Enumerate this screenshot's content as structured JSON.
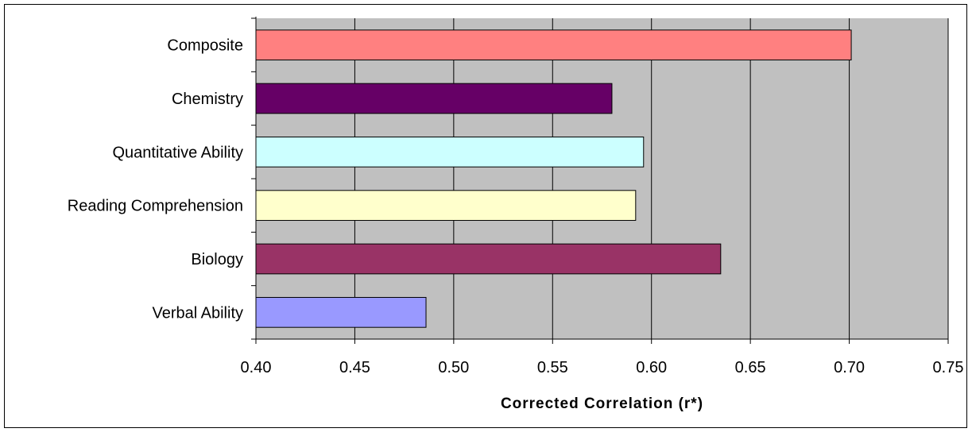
{
  "chart_data": {
    "type": "bar",
    "orientation": "horizontal",
    "title": "",
    "xlabel": "Corrected Correlation (r*)",
    "ylabel": "",
    "xlim": [
      0.4,
      0.75
    ],
    "x_ticks": [
      "0.40",
      "0.45",
      "0.50",
      "0.55",
      "0.60",
      "0.65",
      "0.70",
      "0.75"
    ],
    "x_tick_values": [
      0.4,
      0.45,
      0.5,
      0.55,
      0.6,
      0.65,
      0.7,
      0.75
    ],
    "grid": "vertical",
    "plot_background": "#c0c0c0",
    "categories": [
      "Composite",
      "Chemistry",
      "Quantitative Ability",
      "Reading Comprehension",
      "Biology",
      "Verbal Ability"
    ],
    "values": [
      0.701,
      0.58,
      0.596,
      0.592,
      0.635,
      0.486
    ],
    "colors": [
      "#ff8080",
      "#660066",
      "#ccffff",
      "#ffffcc",
      "#993366",
      "#9999ff"
    ]
  }
}
